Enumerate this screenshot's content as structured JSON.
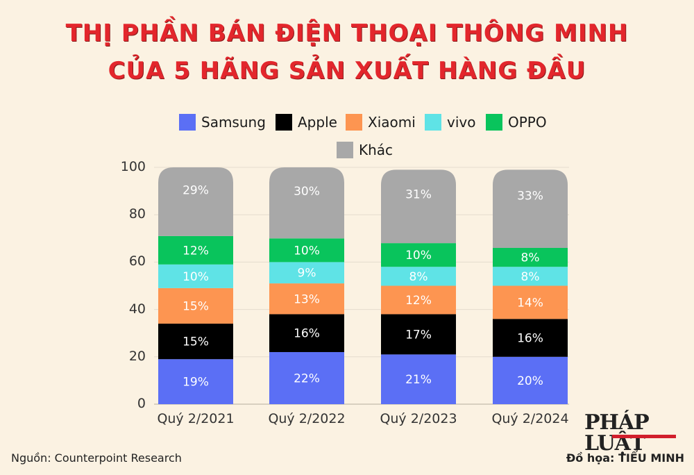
{
  "title_line1": "THỊ PHẦN BÁN ĐIỆN THOẠI THÔNG MINH",
  "title_line2": "CỦA 5 HÃNG SẢN XUẤT HÀNG ĐẦU",
  "source": "Nguồn: Counterpoint Research",
  "credit_label": "Đồ họa:",
  "credit_name": "TIỂU MINH",
  "logo": "PHÁP LUẬT",
  "chart_data": {
    "type": "bar",
    "stacked": true,
    "categories": [
      "Quý 2/2021",
      "Quý 2/2022",
      "Quý 2/2023",
      "Quý 2/2024"
    ],
    "series": [
      {
        "name": "Samsung",
        "color": "#5b6ff5",
        "values": [
          19,
          22,
          21,
          20
        ]
      },
      {
        "name": "Apple",
        "color": "#000000",
        "values": [
          15,
          16,
          17,
          16
        ]
      },
      {
        "name": "Xiaomi",
        "color": "#fd9551",
        "values": [
          15,
          13,
          12,
          14
        ]
      },
      {
        "name": "vivo",
        "color": "#5fe3e6",
        "values": [
          10,
          9,
          8,
          8
        ]
      },
      {
        "name": "OPPO",
        "color": "#09c45c",
        "values": [
          12,
          10,
          10,
          8
        ]
      },
      {
        "name": "Khác",
        "color": "#a8a8a8",
        "values": [
          29,
          30,
          31,
          33
        ]
      }
    ],
    "data_labels": [
      [
        "19%",
        "22%",
        "21%",
        "20%"
      ],
      [
        "15%",
        "16%",
        "17%",
        "16%"
      ],
      [
        "15%",
        "13%",
        "12%",
        "14%"
      ],
      [
        "10%",
        "9%",
        "8%",
        "8%"
      ],
      [
        "12%",
        "10%",
        "10%",
        "8%"
      ],
      [
        "29%",
        "30%",
        "31%",
        "33%"
      ]
    ],
    "yticks": [
      "0",
      "20",
      "40",
      "60",
      "80",
      "100"
    ],
    "ylim": [
      0,
      100
    ],
    "grid": true,
    "legend_position": "top",
    "title": "",
    "xlabel": "",
    "ylabel": ""
  }
}
